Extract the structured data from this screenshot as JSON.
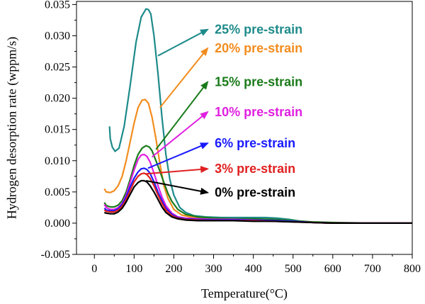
{
  "chart_data": {
    "type": "line",
    "xlabel": "Temperature(°C)",
    "ylabel": "Hydrogen desorption rate (wppm/s)",
    "xlim": [
      -45,
      800
    ],
    "ylim": [
      -0.005,
      0.0355
    ],
    "xticks": [
      0,
      100,
      200,
      300,
      400,
      500,
      600,
      700,
      800
    ],
    "xtick_labels": [
      "0",
      "100",
      "200",
      "300",
      "400",
      "500",
      "600",
      "700",
      "800"
    ],
    "yticks": [
      -0.005,
      0.0,
      0.005,
      0.01,
      0.015,
      0.02,
      0.025,
      0.03,
      0.035
    ],
    "ytick_labels": [
      "-0.005",
      "0.000",
      "0.005",
      "0.010",
      "0.015",
      "0.020",
      "0.025",
      "0.030",
      "0.035"
    ],
    "grid": false,
    "legend": "callout labels with arrows",
    "series": [
      {
        "name": "25% pre-strain",
        "color": "#1e8a8a",
        "x": [
          38,
          40,
          45,
          52,
          62,
          75,
          90,
          105,
          118,
          130,
          136,
          142,
          150,
          160,
          170,
          180,
          190,
          200,
          215,
          230,
          250,
          280,
          320,
          360,
          400,
          430,
          460,
          490,
          520,
          560,
          600,
          650,
          700,
          800
        ],
        "y": [
          0.0155,
          0.0135,
          0.0122,
          0.0115,
          0.012,
          0.0155,
          0.022,
          0.029,
          0.033,
          0.0343,
          0.0342,
          0.0335,
          0.03,
          0.024,
          0.017,
          0.011,
          0.007,
          0.0045,
          0.0025,
          0.0017,
          0.0012,
          0.001,
          0.0009,
          0.0009,
          0.0009,
          0.0009,
          0.0008,
          0.0006,
          0.0003,
          0.0001,
          0.0,
          0.0,
          0.0,
          0.0
        ]
      },
      {
        "name": "20% pre-strain",
        "color": "#f28c1e",
        "x": [
          25,
          30,
          40,
          50,
          60,
          70,
          80,
          90,
          100,
          110,
          120,
          128,
          136,
          145,
          155,
          165,
          175,
          185,
          200,
          220,
          250,
          300,
          350,
          400,
          450,
          500,
          550,
          600,
          700,
          800
        ],
        "y": [
          0.0055,
          0.005,
          0.0049,
          0.0052,
          0.006,
          0.0075,
          0.01,
          0.013,
          0.016,
          0.0185,
          0.0197,
          0.0198,
          0.0192,
          0.017,
          0.0135,
          0.0095,
          0.006,
          0.004,
          0.0022,
          0.0013,
          0.0009,
          0.0007,
          0.0006,
          0.0006,
          0.0005,
          0.0003,
          0.0001,
          0.0,
          0.0,
          0.0
        ]
      },
      {
        "name": "15% pre-strain",
        "color": "#1a7a1a",
        "x": [
          25,
          30,
          40,
          50,
          60,
          70,
          80,
          90,
          100,
          110,
          120,
          130,
          138,
          145,
          155,
          165,
          175,
          185,
          195,
          210,
          230,
          260,
          300,
          350,
          400,
          450,
          500,
          550,
          600,
          700,
          800
        ],
        "y": [
          0.0033,
          0.0028,
          0.0026,
          0.0026,
          0.0029,
          0.0036,
          0.005,
          0.007,
          0.0092,
          0.011,
          0.012,
          0.0124,
          0.0122,
          0.0116,
          0.01,
          0.0083,
          0.0065,
          0.0048,
          0.0035,
          0.0022,
          0.0014,
          0.001,
          0.0008,
          0.0007,
          0.0007,
          0.0006,
          0.0004,
          0.0002,
          0.0001,
          0.0,
          0.0
        ]
      },
      {
        "name": "10% pre-strain",
        "color": "#e020e0",
        "x": [
          25,
          30,
          40,
          50,
          60,
          70,
          80,
          90,
          100,
          110,
          118,
          125,
          132,
          140,
          150,
          160,
          170,
          180,
          195,
          210,
          230,
          260,
          300,
          350,
          400,
          450,
          500,
          550,
          600,
          700,
          800
        ],
        "y": [
          0.003,
          0.0025,
          0.0022,
          0.0022,
          0.0025,
          0.0032,
          0.0045,
          0.0065,
          0.0085,
          0.0102,
          0.0109,
          0.011,
          0.0107,
          0.0098,
          0.008,
          0.006,
          0.0042,
          0.0028,
          0.0016,
          0.001,
          0.0008,
          0.0007,
          0.0006,
          0.0006,
          0.0005,
          0.0004,
          0.0003,
          0.0001,
          0.0,
          0.0,
          0.0
        ]
      },
      {
        "name": "6% pre-strain",
        "color": "#1a1aff",
        "x": [
          25,
          30,
          40,
          50,
          60,
          70,
          80,
          90,
          100,
          110,
          118,
          125,
          132,
          140,
          150,
          160,
          170,
          180,
          195,
          210,
          230,
          260,
          300,
          350,
          400,
          450,
          500,
          550,
          600,
          700,
          800
        ],
        "y": [
          0.0024,
          0.0021,
          0.002,
          0.002,
          0.0023,
          0.003,
          0.0042,
          0.0058,
          0.0072,
          0.0082,
          0.0087,
          0.0088,
          0.0086,
          0.008,
          0.0066,
          0.005,
          0.0036,
          0.0024,
          0.0014,
          0.0009,
          0.0007,
          0.0006,
          0.0005,
          0.0005,
          0.0005,
          0.0004,
          0.0003,
          0.0001,
          0.0,
          0.0,
          0.0
        ]
      },
      {
        "name": "3% pre-strain",
        "color": "#e02020",
        "x": [
          25,
          30,
          40,
          50,
          60,
          70,
          80,
          90,
          100,
          110,
          118,
          125,
          132,
          140,
          150,
          160,
          170,
          180,
          195,
          210,
          230,
          260,
          300,
          350,
          400,
          450,
          500,
          550,
          600,
          700,
          800
        ],
        "y": [
          0.0021,
          0.0019,
          0.0018,
          0.0018,
          0.0021,
          0.0027,
          0.0038,
          0.0052,
          0.0066,
          0.0075,
          0.0079,
          0.008,
          0.0078,
          0.0072,
          0.006,
          0.0045,
          0.0032,
          0.0021,
          0.0012,
          0.0008,
          0.0006,
          0.0005,
          0.0004,
          0.0004,
          0.0004,
          0.0003,
          0.0002,
          0.0001,
          0.0,
          0.0,
          0.0
        ]
      },
      {
        "name": "0% pre-strain",
        "color": "#000000",
        "x": [
          25,
          30,
          40,
          50,
          60,
          70,
          80,
          90,
          100,
          110,
          118,
          125,
          132,
          140,
          150,
          160,
          170,
          180,
          195,
          210,
          230,
          260,
          300,
          350,
          400,
          450,
          500,
          550,
          600,
          700,
          800
        ],
        "y": [
          0.0017,
          0.0016,
          0.0015,
          0.0015,
          0.0018,
          0.0024,
          0.0034,
          0.0046,
          0.0058,
          0.0065,
          0.0068,
          0.0068,
          0.0066,
          0.006,
          0.005,
          0.0038,
          0.0026,
          0.0017,
          0.001,
          0.0007,
          0.0005,
          0.0004,
          0.0004,
          0.0004,
          0.0003,
          0.0003,
          0.0002,
          0.0001,
          0.0,
          0.0,
          0.0
        ]
      }
    ],
    "annotations": [
      {
        "text": "25% pre-strain",
        "color": "#1e8a8a",
        "arrow_from": [
          160,
          0.0268
        ],
        "arrow_to": [
          285,
          0.031
        ]
      },
      {
        "text": "20% pre-strain",
        "color": "#f28c1e",
        "arrow_from": [
          165,
          0.0185
        ],
        "arrow_to": [
          285,
          0.028
        ]
      },
      {
        "text": "15% pre-strain",
        "color": "#1a7a1a",
        "arrow_from": [
          155,
          0.0118
        ],
        "arrow_to": [
          285,
          0.0226
        ]
      },
      {
        "text": "10% pre-strain",
        "color": "#e020e0",
        "arrow_from": [
          145,
          0.0106
        ],
        "arrow_to": [
          285,
          0.0178
        ]
      },
      {
        "text": "6% pre-strain",
        "color": "#1a1aff",
        "arrow_from": [
          135,
          0.0088
        ],
        "arrow_to": [
          285,
          0.0128
        ]
      },
      {
        "text": "3% pre-strain",
        "color": "#e02020",
        "arrow_from": [
          130,
          0.0079
        ],
        "arrow_to": [
          285,
          0.0087
        ]
      },
      {
        "text": "0% pre-strain",
        "color": "#000000",
        "arrow_from": [
          130,
          0.0068
        ],
        "arrow_to": [
          285,
          0.0049
        ]
      }
    ]
  }
}
